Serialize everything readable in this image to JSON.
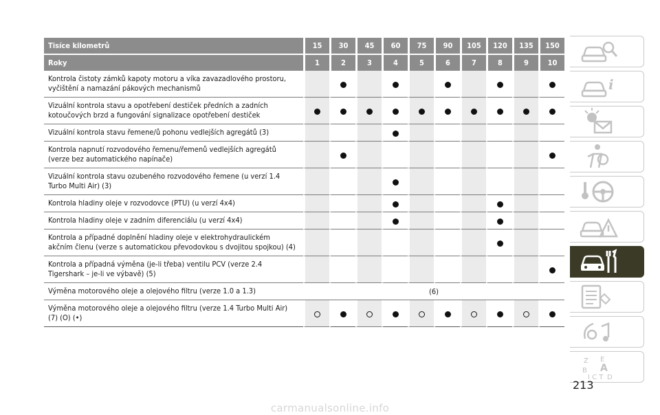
{
  "table": {
    "header_km_label": "Tisíce kilometrů",
    "header_years_label": "Roky",
    "km": [
      "15",
      "30",
      "45",
      "60",
      "75",
      "90",
      "105",
      "120",
      "135",
      "150"
    ],
    "years": [
      "1",
      "2",
      "3",
      "4",
      "5",
      "6",
      "7",
      "8",
      "9",
      "10"
    ],
    "rows": [
      {
        "text": "Kontrola čistoty zámků kapoty motoru a víka zavazadlového prostoru, vyčištění a namazání pákových mechanismů",
        "marks": [
          "",
          "dot",
          "",
          "dot",
          "",
          "dot",
          "",
          "dot",
          "",
          "dot"
        ]
      },
      {
        "text": "Vizuální kontrola stavu a opotřebení destiček předních a zadních kotoučových brzd a fungování signalizace opotřebení destiček",
        "marks": [
          "dot",
          "dot",
          "dot",
          "dot",
          "dot",
          "dot",
          "dot",
          "dot",
          "dot",
          "dot"
        ]
      },
      {
        "text": "Vizuální kontrola stavu řemene/ů pohonu vedlejších agregátů (3)",
        "marks": [
          "",
          "",
          "",
          "dot",
          "",
          "",
          "",
          "",
          "",
          ""
        ]
      },
      {
        "text": "Kontrola napnutí rozvodového řemenu/řemenů vedlejších agregátů (verze bez automatického napínače)",
        "marks": [
          "",
          "dot",
          "",
          "",
          "",
          "",
          "",
          "",
          "",
          "dot"
        ]
      },
      {
        "text": "Vizuální kontrola stavu ozubeného rozvodového řemene (u verzí 1.4 Turbo Multi Air) (3)",
        "marks": [
          "",
          "",
          "",
          "dot",
          "",
          "",
          "",
          "",
          "",
          ""
        ]
      },
      {
        "text": "Kontrola hladiny oleje v rozvodovce (PTU) (u verzí 4x4)",
        "marks": [
          "",
          "",
          "",
          "dot",
          "",
          "",
          "",
          "dot",
          "",
          ""
        ]
      },
      {
        "text": "Kontrola hladiny oleje v zadním diferenciálu (u verzí 4x4)",
        "marks": [
          "",
          "",
          "",
          "dot",
          "",
          "",
          "",
          "dot",
          "",
          ""
        ]
      },
      {
        "text": "Kontrola a případné doplnění hladiny oleje v elektrohydraulickém akčním členu (verze s automatickou převodovkou s dvojitou spojkou) (4)",
        "marks": [
          "",
          "",
          "",
          "",
          "",
          "",
          "",
          "dot",
          "",
          ""
        ]
      },
      {
        "text": "Kontrola a případná výměna (je-li třeba) ventilu PCV (verze 2.4 Tigershark – je-li ve výbavě) (5)",
        "marks": [
          "",
          "",
          "",
          "",
          "",
          "",
          "",
          "",
          "",
          "dot"
        ]
      },
      {
        "text": "Výměna motorového oleje a olejového filtru (verze 1.0 a 1.3)",
        "span": "(6)"
      },
      {
        "text": "Výměna motorového oleje a olejového filtru (verze 1.4 Turbo Multi Air) (7) (O) (•)",
        "marks": [
          "ring",
          "dot",
          "ring",
          "dot",
          "ring",
          "dot",
          "ring",
          "dot",
          "ring",
          "dot"
        ]
      }
    ]
  },
  "sidebar": {
    "tabs": [
      {
        "icon": "car-magnifier-icon"
      },
      {
        "icon": "car-info-icon"
      },
      {
        "icon": "warning-lights-envelope-icon"
      },
      {
        "icon": "airbag-person-icon"
      },
      {
        "icon": "key-steering-wheel-icon"
      },
      {
        "icon": "car-warning-triangle-icon"
      },
      {
        "icon": "car-wrench-icon",
        "active": true
      },
      {
        "icon": "spec-list-icon"
      },
      {
        "icon": "multimedia-note-icon"
      },
      {
        "icon": "alphabetical-index-icon"
      }
    ],
    "active_color": "#3a3a27"
  },
  "page_number": "213",
  "watermark": "carmanualsonline.info"
}
